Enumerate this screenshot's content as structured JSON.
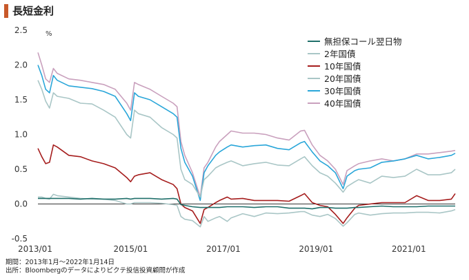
{
  "title": "長短金利",
  "footer": {
    "period": "期間：2013年1月～2022年1月14日",
    "source": "出所：Bloombergのデータによりピクテ投信投資顧問が作成"
  },
  "chart_data": {
    "type": "line",
    "title": "長短金利",
    "ylabel": "%",
    "ylim": [
      -0.5,
      2.5
    ],
    "yticks": [
      "-0.5",
      "0.0",
      "0.5",
      "1.0",
      "1.5",
      "2.0",
      "2.5"
    ],
    "xlim": [
      "2013-01",
      "2022-01"
    ],
    "xticks": [
      "2013/01",
      "2015/01",
      "2017/01",
      "2019/01",
      "2021/01"
    ],
    "legend_position": "top-right",
    "x": [
      "2013-01",
      "2013-02",
      "2013-03",
      "2013-04",
      "2013-05",
      "2013-06",
      "2013-09",
      "2013-12",
      "2014-03",
      "2014-06",
      "2014-09",
      "2014-12",
      "2015-01",
      "2015-02",
      "2015-03",
      "2015-06",
      "2015-09",
      "2015-12",
      "2016-01",
      "2016-02",
      "2016-03",
      "2016-05",
      "2016-07",
      "2016-08",
      "2016-09",
      "2016-11",
      "2016-12",
      "2017-02",
      "2017-03",
      "2017-06",
      "2017-09",
      "2017-12",
      "2018-03",
      "2018-06",
      "2018-09",
      "2018-10",
      "2018-12",
      "2019-02",
      "2019-04",
      "2019-06",
      "2019-08",
      "2019-09",
      "2019-11",
      "2019-12",
      "2020-03",
      "2020-06",
      "2020-09",
      "2020-12",
      "2021-03",
      "2021-06",
      "2021-09",
      "2021-12",
      "2022-01"
    ],
    "series": [
      {
        "name": "無担保コール翌日物",
        "color": "#1f6f6a",
        "values": [
          0.08,
          0.08,
          0.08,
          0.08,
          0.08,
          0.08,
          0.08,
          0.07,
          0.08,
          0.07,
          0.07,
          0.08,
          0.07,
          0.08,
          0.08,
          0.08,
          0.07,
          0.08,
          0.07,
          -0.01,
          -0.02,
          -0.04,
          -0.05,
          -0.05,
          -0.05,
          -0.05,
          -0.05,
          -0.04,
          -0.04,
          -0.04,
          -0.05,
          -0.04,
          -0.04,
          -0.06,
          -0.06,
          -0.06,
          -0.07,
          -0.05,
          -0.05,
          -0.06,
          -0.06,
          -0.06,
          -0.05,
          -0.05,
          -0.04,
          -0.03,
          -0.04,
          -0.04,
          -0.04,
          -0.03,
          -0.03,
          -0.03,
          -0.03
        ]
      },
      {
        "name": "2年国債",
        "color": "#a9c6c6",
        "values": [
          0.1,
          0.1,
          0.08,
          0.07,
          0.14,
          0.12,
          0.1,
          0.08,
          0.07,
          0.07,
          0.05,
          0.0,
          0.0,
          0.02,
          0.02,
          0.02,
          0.01,
          -0.01,
          -0.02,
          -0.18,
          -0.22,
          -0.24,
          -0.33,
          -0.18,
          -0.25,
          -0.2,
          -0.18,
          -0.25,
          -0.2,
          -0.14,
          -0.18,
          -0.13,
          -0.14,
          -0.13,
          -0.11,
          -0.11,
          -0.16,
          -0.18,
          -0.15,
          -0.21,
          -0.32,
          -0.27,
          -0.15,
          -0.13,
          -0.16,
          -0.14,
          -0.13,
          -0.13,
          -0.12,
          -0.12,
          -0.13,
          -0.1,
          -0.08
        ]
      },
      {
        "name": "10年国債",
        "color": "#a51c1c",
        "values": [
          0.8,
          0.68,
          0.58,
          0.6,
          0.85,
          0.82,
          0.7,
          0.68,
          0.62,
          0.58,
          0.52,
          0.38,
          0.32,
          0.4,
          0.42,
          0.45,
          0.35,
          0.28,
          0.22,
          0.0,
          -0.05,
          -0.1,
          -0.28,
          -0.08,
          -0.05,
          0.02,
          0.05,
          0.1,
          0.07,
          0.08,
          0.05,
          0.05,
          0.05,
          0.04,
          0.12,
          0.15,
          0.02,
          -0.02,
          -0.04,
          -0.15,
          -0.28,
          -0.2,
          -0.06,
          -0.02,
          0.0,
          0.02,
          0.02,
          0.02,
          0.12,
          0.05,
          0.05,
          0.07,
          0.15
        ]
      },
      {
        "name": "20年国債",
        "color": "#a9c6c6",
        "values": [
          1.78,
          1.65,
          1.48,
          1.38,
          1.6,
          1.55,
          1.52,
          1.45,
          1.44,
          1.35,
          1.25,
          1.0,
          0.95,
          1.35,
          1.3,
          1.25,
          1.1,
          1.0,
          0.95,
          0.5,
          0.35,
          0.28,
          0.1,
          0.35,
          0.4,
          0.52,
          0.55,
          0.6,
          0.62,
          0.55,
          0.58,
          0.6,
          0.56,
          0.55,
          0.65,
          0.68,
          0.55,
          0.45,
          0.4,
          0.3,
          0.17,
          0.25,
          0.32,
          0.35,
          0.3,
          0.4,
          0.38,
          0.4,
          0.5,
          0.42,
          0.42,
          0.45,
          0.5
        ]
      },
      {
        "name": "30年国債",
        "color": "#29a6d9",
        "values": [
          2.0,
          1.85,
          1.65,
          1.6,
          1.85,
          1.78,
          1.7,
          1.68,
          1.66,
          1.62,
          1.55,
          1.3,
          1.2,
          1.6,
          1.55,
          1.5,
          1.4,
          1.3,
          1.25,
          0.8,
          0.6,
          0.4,
          0.05,
          0.45,
          0.55,
          0.7,
          0.75,
          0.82,
          0.85,
          0.82,
          0.84,
          0.85,
          0.8,
          0.78,
          0.88,
          0.9,
          0.75,
          0.62,
          0.55,
          0.45,
          0.22,
          0.4,
          0.48,
          0.5,
          0.52,
          0.6,
          0.62,
          0.65,
          0.7,
          0.65,
          0.67,
          0.7,
          0.73
        ]
      },
      {
        "name": "40年国債",
        "color": "#c9a0bd",
        "values": [
          2.18,
          2.0,
          1.8,
          1.75,
          1.95,
          1.88,
          1.8,
          1.78,
          1.75,
          1.72,
          1.65,
          1.45,
          1.35,
          1.75,
          1.72,
          1.65,
          1.55,
          1.45,
          1.4,
          0.9,
          0.7,
          0.45,
          0.1,
          0.52,
          0.6,
          0.82,
          0.9,
          1.0,
          1.05,
          1.02,
          1.02,
          1.0,
          0.95,
          0.92,
          1.05,
          1.06,
          0.85,
          0.7,
          0.62,
          0.5,
          0.28,
          0.48,
          0.55,
          0.58,
          0.62,
          0.65,
          0.62,
          0.65,
          0.72,
          0.72,
          0.74,
          0.76,
          0.77
        ]
      }
    ]
  }
}
